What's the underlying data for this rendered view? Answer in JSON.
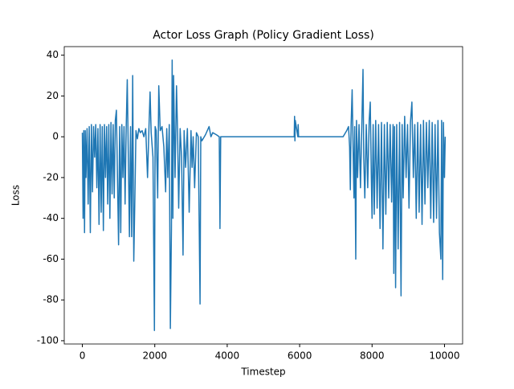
{
  "chart_data": {
    "type": "line",
    "title": "Actor Loss Graph (Policy Gradient Loss)",
    "xlabel": "Timestep",
    "ylabel": "Loss",
    "color": "#1f77b4",
    "x": [
      0,
      20,
      40,
      60,
      80,
      100,
      130,
      160,
      190,
      220,
      250,
      280,
      310,
      340,
      370,
      400,
      430,
      460,
      490,
      520,
      550,
      580,
      610,
      640,
      670,
      700,
      730,
      760,
      790,
      820,
      850,
      880,
      910,
      940,
      970,
      1000,
      1030,
      1060,
      1090,
      1120,
      1150,
      1180,
      1210,
      1240,
      1270,
      1300,
      1330,
      1360,
      1390,
      1420,
      1450,
      1480,
      1520,
      1560,
      1600,
      1650,
      1700,
      1750,
      1800,
      1840,
      1870,
      1900,
      1950,
      1990,
      2010,
      2040,
      2080,
      2110,
      2150,
      2200,
      2250,
      2300,
      2330,
      2360,
      2400,
      2430,
      2460,
      2480,
      2500,
      2520,
      2560,
      2600,
      2630,
      2660,
      2700,
      2740,
      2780,
      2810,
      2850,
      2900,
      2950,
      3000,
      3030,
      3060,
      3100,
      3150,
      3200,
      3250,
      3270,
      3300,
      3400,
      3500,
      3550,
      3600,
      3700,
      3780,
      3800,
      3820,
      3900,
      4500,
      5000,
      5500,
      5850,
      5860,
      5870,
      5880,
      5950,
      5960,
      5970,
      6500,
      7000,
      7200,
      7300,
      7350,
      7380,
      7400,
      7420,
      7450,
      7480,
      7500,
      7520,
      7550,
      7570,
      7600,
      7640,
      7680,
      7720,
      7750,
      7770,
      7800,
      7840,
      7880,
      7920,
      7950,
      7980,
      8000,
      8030,
      8060,
      8100,
      8140,
      8180,
      8220,
      8260,
      8300,
      8340,
      8380,
      8420,
      8460,
      8500,
      8540,
      8580,
      8600,
      8620,
      8650,
      8680,
      8720,
      8760,
      8800,
      8830,
      8860,
      8900,
      8940,
      8980,
      9020,
      9060,
      9100,
      9140,
      9180,
      9220,
      9260,
      9300,
      9340,
      9380,
      9420,
      9460,
      9500,
      9540,
      9580,
      9620,
      9660,
      9700,
      9740,
      9780,
      9820,
      9860,
      9900,
      9920,
      9950,
      9970,
      10000,
      10020
    ],
    "values": [
      2,
      -40,
      3,
      -47,
      3,
      -20,
      4,
      -33,
      5,
      -47,
      6,
      -27,
      5,
      -10,
      6,
      -25,
      4,
      -43,
      6,
      -37,
      5,
      -46,
      6,
      -20,
      5,
      -33,
      6,
      -40,
      7,
      -28,
      6,
      -30,
      8,
      13,
      -20,
      -53,
      5,
      -47,
      6,
      -20,
      5,
      -33,
      4,
      28,
      -10,
      -49,
      5,
      -49,
      30,
      -61,
      -30,
      3,
      -1,
      4,
      2,
      3,
      0,
      4,
      -20,
      5,
      22,
      2,
      -10,
      -95,
      5,
      3,
      -30,
      25,
      3,
      5,
      -5,
      -27,
      4,
      -20,
      6,
      -94,
      -45,
      37.6,
      -40,
      30,
      -20,
      25,
      2,
      -35,
      4,
      -10,
      -58,
      3,
      -15,
      4,
      -37,
      3,
      -15,
      0,
      -25,
      2,
      0,
      -82,
      0,
      -2,
      1,
      5,
      0,
      2,
      1,
      0,
      -45,
      0,
      0,
      0,
      0,
      0,
      0,
      10,
      -2,
      8,
      0,
      6,
      0,
      0,
      0,
      0,
      3,
      5,
      -5,
      -26,
      5,
      23,
      -10,
      -30,
      5,
      -60,
      8,
      -20,
      6,
      -25,
      8,
      33,
      -10,
      -30,
      6,
      -25,
      8,
      17,
      -20,
      -40,
      6,
      -38,
      8,
      -35,
      6,
      -45,
      7,
      -55,
      6,
      -38,
      7,
      -30,
      6,
      -32,
      6,
      -67,
      5,
      -74,
      6,
      -55,
      7,
      -78,
      6,
      -30,
      10,
      -20,
      6,
      -35,
      7,
      17,
      -20,
      6,
      -40,
      7,
      -37,
      6,
      -43,
      8,
      -33,
      7,
      -25,
      8,
      -40,
      7,
      -42,
      6,
      -40,
      8,
      -47,
      -60,
      8,
      -70,
      7,
      -20,
      0
    ],
    "xlim": [
      -500,
      10500
    ],
    "ylim": [
      -101.6,
      44.2
    ],
    "xticks": [
      0,
      2000,
      4000,
      6000,
      8000,
      10000
    ],
    "yticks": [
      -100,
      -80,
      -60,
      -40,
      -20,
      0,
      20,
      40
    ]
  }
}
